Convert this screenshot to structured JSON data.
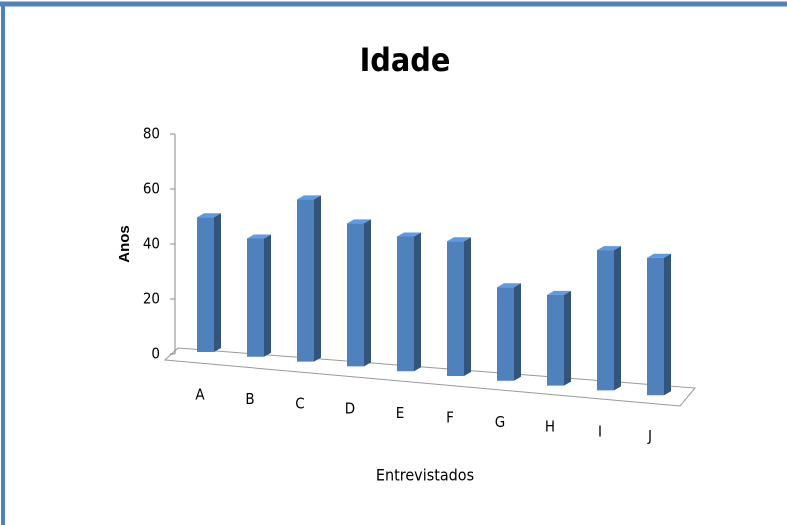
{
  "chart_data": {
    "type": "bar3d",
    "title": "Idade",
    "x_label": "Entrevistados",
    "y_label": "Anos",
    "categories": [
      "A",
      "B",
      "C",
      "D",
      "E",
      "F",
      "G",
      "H",
      "I",
      "J"
    ],
    "values": [
      49,
      43,
      59,
      52,
      49,
      49,
      34,
      33,
      51,
      50
    ],
    "color": "#4f81bd",
    "ylim": [
      0,
      80
    ],
    "yticks": [
      0,
      20,
      40,
      60,
      80
    ]
  }
}
